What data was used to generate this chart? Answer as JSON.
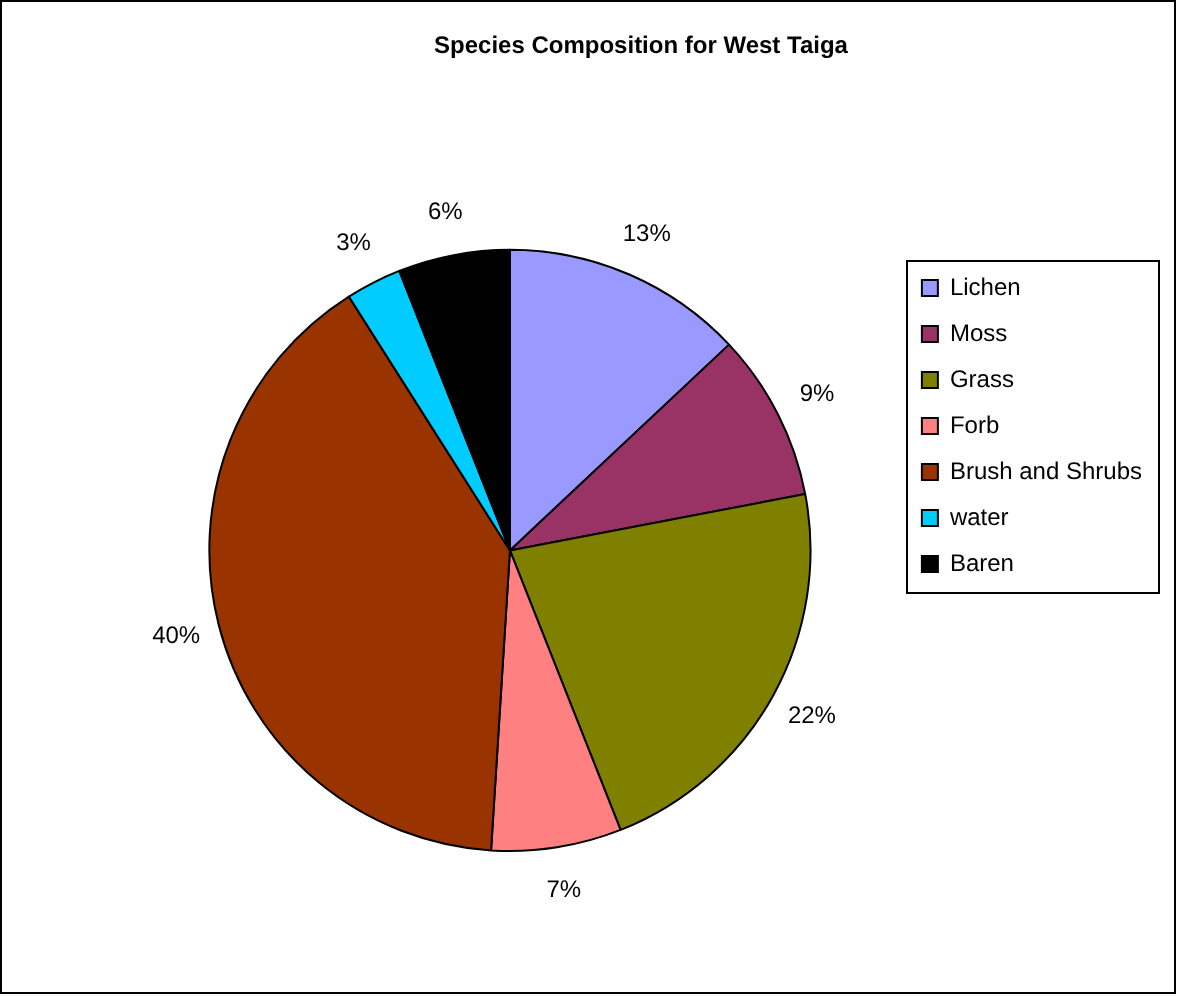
{
  "chart_data": {
    "type": "pie",
    "title": "Species Composition for West Taiga",
    "categories": [
      "Lichen",
      "Moss",
      "Grass",
      "Forb",
      "Brush and Shrubs",
      "water",
      "Baren"
    ],
    "values": [
      13,
      9,
      22,
      7,
      40,
      3,
      6
    ],
    "value_labels": [
      "13%",
      "9%",
      "22%",
      "7%",
      "40%",
      "3%",
      "6%"
    ],
    "colors": [
      "#9999ff",
      "#993366",
      "#808000",
      "#ff8080",
      "#993300",
      "#00ccff",
      "#000000"
    ],
    "legend": "right"
  }
}
